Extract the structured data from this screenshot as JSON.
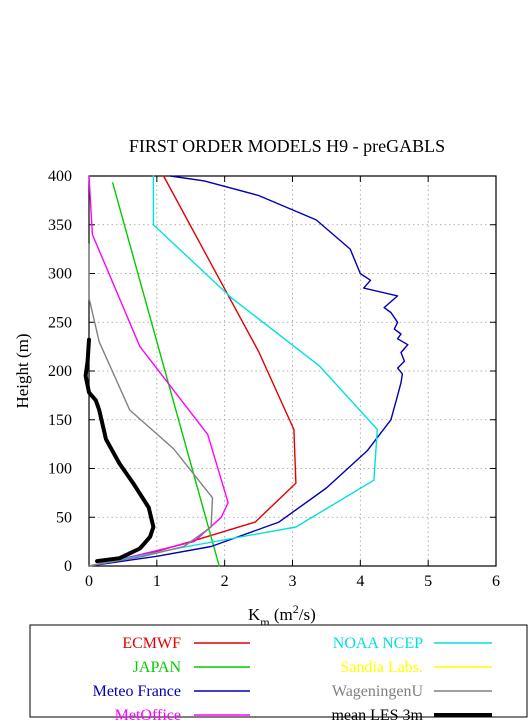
{
  "chart_data": {
    "type": "line",
    "title": "FIRST ORDER MODELS H9  - preGABLS",
    "xlabel": "K",
    "xlabel_sub": "m",
    "xlabel_unit_open": " (m",
    "xlabel_sup": "2",
    "xlabel_unit_close": "/s)",
    "ylabel": "Height (m)",
    "xlim": [
      0,
      6
    ],
    "ylim": [
      0,
      400
    ],
    "xticks": [
      "0",
      "1",
      "2",
      "3",
      "4",
      "5",
      "6"
    ],
    "yticks": [
      "0",
      "50",
      "100",
      "150",
      "200",
      "250",
      "300",
      "350",
      "400"
    ],
    "grid": true,
    "legend_position": "bottom",
    "series": [
      {
        "name": "ECMWF",
        "color": "#e00000",
        "width": 1.4,
        "points": [
          [
            0,
            0
          ],
          [
            0.85,
            12
          ],
          [
            1.5,
            25
          ],
          [
            2.45,
            45
          ],
          [
            3.05,
            85
          ],
          [
            3.02,
            140
          ],
          [
            2.5,
            220
          ],
          [
            1.8,
            310
          ],
          [
            1.1,
            400
          ]
        ]
      },
      {
        "name": "JAPAN",
        "color": "#00cc00",
        "width": 1.4,
        "points": [
          [
            1.92,
            0
          ],
          [
            0.35,
            393
          ]
        ]
      },
      {
        "name": "Meteo France",
        "color": "#0000b4",
        "width": 1.4,
        "points": [
          [
            0,
            0
          ],
          [
            1.0,
            10
          ],
          [
            1.8,
            20
          ],
          [
            2.8,
            45
          ],
          [
            3.5,
            80
          ],
          [
            4.1,
            118
          ],
          [
            4.45,
            150
          ],
          [
            4.55,
            175
          ],
          [
            4.6,
            188
          ],
          [
            4.62,
            197
          ],
          [
            4.55,
            203
          ],
          [
            4.65,
            210
          ],
          [
            4.6,
            219
          ],
          [
            4.7,
            227
          ],
          [
            4.55,
            233
          ],
          [
            4.6,
            238
          ],
          [
            4.5,
            243
          ],
          [
            4.55,
            250
          ],
          [
            4.45,
            260
          ],
          [
            4.35,
            265
          ],
          [
            4.55,
            277
          ],
          [
            4.05,
            285
          ],
          [
            4.15,
            293
          ],
          [
            4.0,
            300
          ],
          [
            3.85,
            325
          ],
          [
            3.35,
            355
          ],
          [
            2.5,
            380
          ],
          [
            1.7,
            395
          ],
          [
            1.2,
            400
          ]
        ]
      },
      {
        "name": "MetOffice",
        "color": "#ff00ff",
        "width": 1.4,
        "points": [
          [
            0,
            0
          ],
          [
            0.65,
            10
          ],
          [
            1.55,
            25
          ],
          [
            1.95,
            50
          ],
          [
            2.05,
            65
          ],
          [
            1.75,
            135
          ],
          [
            0.75,
            225
          ],
          [
            0.05,
            340
          ],
          [
            0,
            400
          ]
        ]
      },
      {
        "name": "NOAA NCEP",
        "color": "#00e0e0",
        "width": 1.4,
        "points": [
          [
            0,
            0
          ],
          [
            1.45,
            20
          ],
          [
            3.05,
            40
          ],
          [
            4.2,
            88
          ],
          [
            4.25,
            140
          ],
          [
            3.4,
            205
          ],
          [
            2.1,
            275
          ],
          [
            0.95,
            350
          ],
          [
            0.95,
            400
          ]
        ]
      },
      {
        "name": "Sandia Labs.",
        "color": "#ffff00",
        "width": 1.4,
        "points": []
      },
      {
        "name": "WageningenU",
        "color": "#808080",
        "width": 1.4,
        "points": [
          [
            0,
            0
          ],
          [
            0.8,
            10
          ],
          [
            1.4,
            20
          ],
          [
            1.8,
            40
          ],
          [
            1.82,
            70
          ],
          [
            1.25,
            120
          ],
          [
            0.6,
            160
          ],
          [
            0.15,
            230
          ],
          [
            0,
            275
          ],
          [
            0,
            330
          ]
        ]
      },
      {
        "name": "mean LES 3m",
        "color": "#000000",
        "width": 4,
        "points": [
          [
            0.12,
            5
          ],
          [
            0.45,
            8
          ],
          [
            0.75,
            18
          ],
          [
            0.9,
            30
          ],
          [
            0.95,
            40
          ],
          [
            0.88,
            60
          ],
          [
            0.65,
            85
          ],
          [
            0.45,
            105
          ],
          [
            0.25,
            130
          ],
          [
            0.15,
            160
          ],
          [
            0.1,
            170
          ],
          [
            0,
            178
          ],
          [
            -0.05,
            195
          ],
          [
            -0.02,
            210
          ],
          [
            0,
            232
          ]
        ]
      }
    ]
  }
}
